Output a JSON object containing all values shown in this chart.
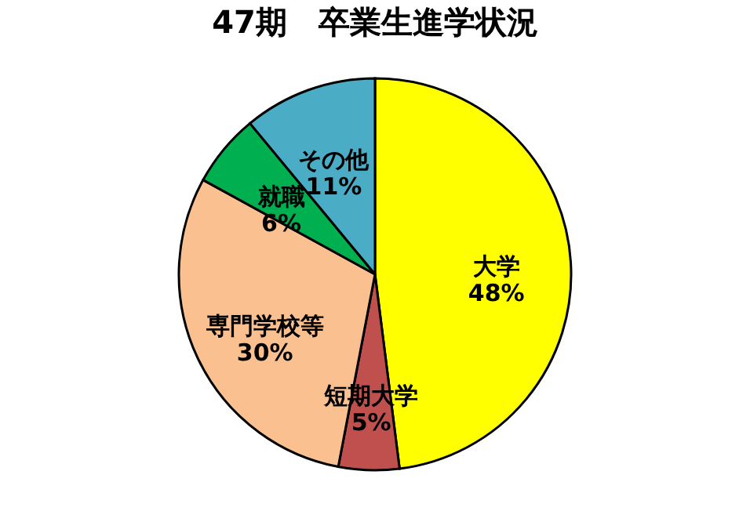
{
  "chart_data": {
    "type": "pie",
    "title": "47期　卒業生進学状況",
    "categories": [
      "大学",
      "短期大学",
      "専門学校等",
      "就職",
      "その他"
    ],
    "values": [
      48,
      5,
      30,
      6,
      11
    ],
    "value_labels": [
      "48%",
      "5%",
      "30%",
      "6%",
      "11%"
    ],
    "colors": [
      "#ffff00",
      "#c0504d",
      "#fac090",
      "#00b050",
      "#4bacc6"
    ],
    "legend": false
  }
}
